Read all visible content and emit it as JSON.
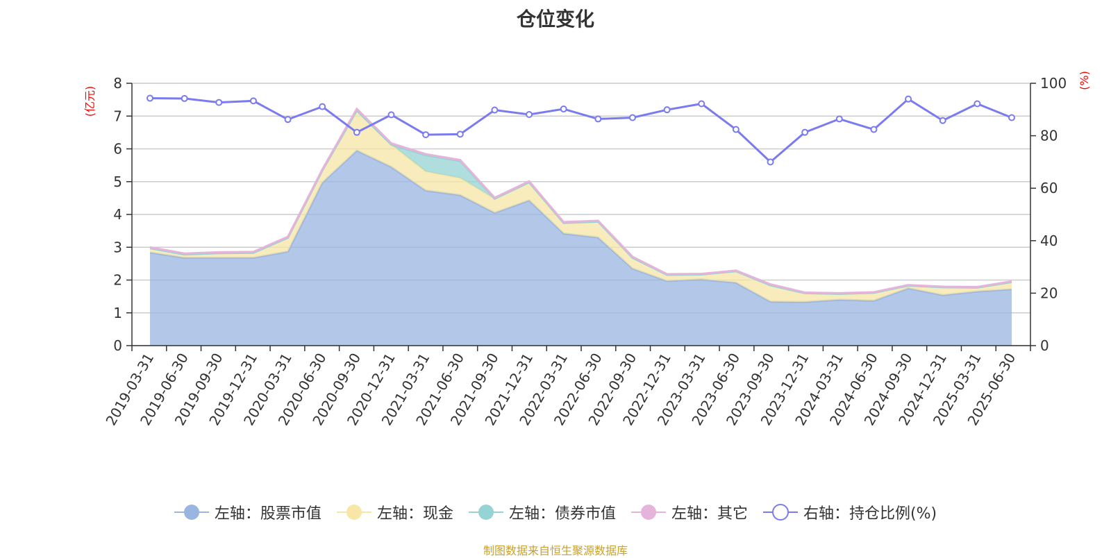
{
  "title": "仓位变化",
  "source": "制图数据来自恒生聚源数据库",
  "chart_data": {
    "type": "area",
    "title": "仓位变化",
    "categories": [
      "2019-03-31",
      "2019-06-30",
      "2019-09-30",
      "2019-12-31",
      "2020-03-31",
      "2020-06-30",
      "2020-09-30",
      "2020-12-31",
      "2021-03-31",
      "2021-06-30",
      "2021-09-30",
      "2021-12-31",
      "2022-03-31",
      "2022-06-30",
      "2022-09-30",
      "2022-12-31",
      "2023-03-31",
      "2023-06-30",
      "2023-09-30",
      "2023-12-31",
      "2024-03-31",
      "2024-06-30",
      "2024-09-30",
      "2024-12-31",
      "2025-03-31",
      "2025-06-30"
    ],
    "left_axis": {
      "unit": "(亿元)",
      "ylim": [
        0,
        8
      ],
      "ticks": [
        "0",
        "1",
        "2",
        "3",
        "4",
        "5",
        "6",
        "7",
        "8"
      ]
    },
    "right_axis": {
      "unit": "(%)",
      "ylim": [
        0,
        100
      ],
      "ticks": [
        "0",
        "20",
        "40",
        "60",
        "80",
        "100"
      ]
    },
    "grid": true,
    "legend_position": "bottom",
    "series": [
      {
        "name": "左轴：股票市值",
        "axis": "left",
        "color": "#9ab5e0",
        "values": [
          2.84,
          2.68,
          2.68,
          2.68,
          2.87,
          4.97,
          5.95,
          5.45,
          4.73,
          4.59,
          4.05,
          4.43,
          3.42,
          3.3,
          2.35,
          1.97,
          2.02,
          1.92,
          1.34,
          1.33,
          1.4,
          1.37,
          1.75,
          1.54,
          1.65,
          1.72
        ]
      },
      {
        "name": "左轴：现金",
        "axis": "left",
        "color": "#f7e6a6",
        "values": [
          0.13,
          0.1,
          0.14,
          0.15,
          0.42,
          0.37,
          1.22,
          0.68,
          0.58,
          0.52,
          0.43,
          0.55,
          0.32,
          0.48,
          0.33,
          0.19,
          0.15,
          0.35,
          0.5,
          0.27,
          0.18,
          0.24,
          0.08,
          0.24,
          0.12,
          0.22
        ]
      },
      {
        "name": "左轴：债券市值",
        "axis": "left",
        "color": "#96d3d3",
        "values": [
          0,
          0,
          0,
          0,
          0,
          0,
          0,
          0,
          0.5,
          0.52,
          0,
          0,
          0,
          0,
          0,
          0,
          0,
          0,
          0,
          0,
          0,
          0,
          0,
          0,
          0,
          0
        ]
      },
      {
        "name": "左轴：其它",
        "axis": "left",
        "color": "#e6b3da",
        "values": [
          0.03,
          0.03,
          0.03,
          0.03,
          0.03,
          0.03,
          0.05,
          0.04,
          0.03,
          0.03,
          0.03,
          0.03,
          0.03,
          0.03,
          0.03,
          0.02,
          0.02,
          0.02,
          0.03,
          0.02,
          0.02,
          0.02,
          0.02,
          0.02,
          0.02,
          0.02
        ]
      },
      {
        "name": "右轴：持仓比例(%)",
        "axis": "right",
        "color": "#7b7bf0",
        "values": [
          94.3,
          94.2,
          92.7,
          93.3,
          86.2,
          91.1,
          81.3,
          88.0,
          80.4,
          80.6,
          89.8,
          88.1,
          90.2,
          86.4,
          86.9,
          89.9,
          92.2,
          82.4,
          70.0,
          81.3,
          86.4,
          82.4,
          94.0,
          85.8,
          92.2,
          86.9
        ]
      }
    ]
  }
}
